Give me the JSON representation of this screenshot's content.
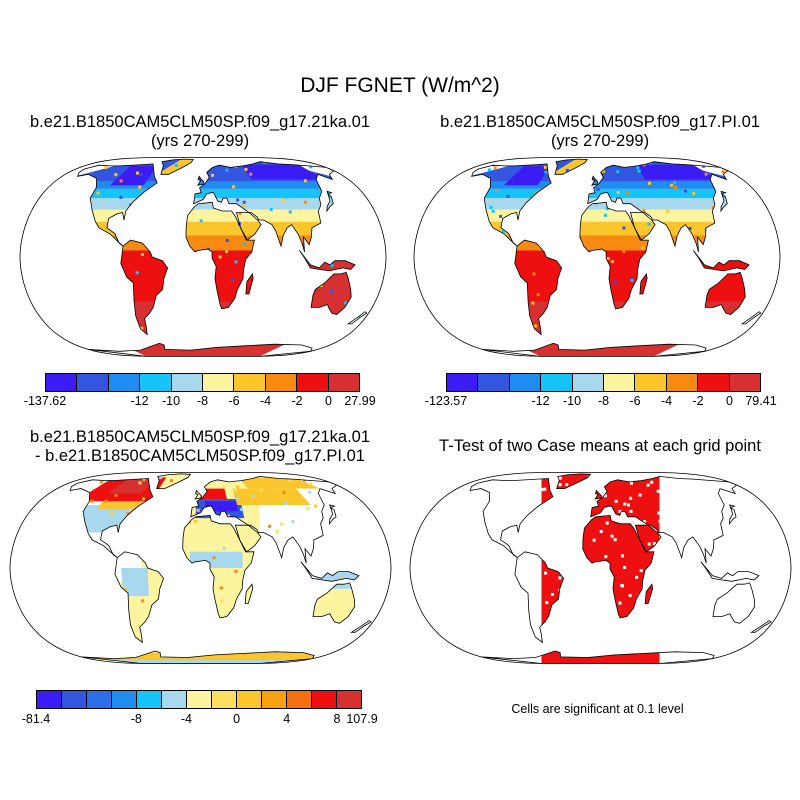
{
  "title": "DJF FGNET (W/m^2)",
  "panels": [
    {
      "id": "p1",
      "title_line1": "b.e21.B1850CAM5CLM50SP.f09_g17.21ka.01",
      "title_line2": "(yrs 270-299)"
    },
    {
      "id": "p2",
      "title_line1": "b.e21.B1850CAM5CLM50SP.f09_g17.PI.01",
      "title_line2": "(yrs 270-299)"
    },
    {
      "id": "p3",
      "title_line1": "b.e21.B1850CAM5CLM50SP.f09_g17.21ka.01",
      "title_line2": "- b.e21.B1850CAM5CLM50SP.f09_g17.PI.01"
    },
    {
      "id": "p4",
      "title_line1": "T-Test of two Case means at each grid point",
      "title_line2": ""
    }
  ],
  "colorbars": [
    {
      "id": "cb1",
      "colors": [
        "#3b1cf5",
        "#3355e0",
        "#1f8cf0",
        "#15c4f8",
        "#a7d8ee",
        "#fdf4a0",
        "#fbc52c",
        "#f78a10",
        "#ee1010",
        "#d63030"
      ],
      "labels": [
        "-137.62",
        "-12",
        "-10",
        "-8",
        "-6",
        "-4",
        "-2",
        "0",
        "27.99"
      ]
    },
    {
      "id": "cb2",
      "colors": [
        "#3b1cf5",
        "#3355e0",
        "#1f8cf0",
        "#15c4f8",
        "#a7d8ee",
        "#fdf4a0",
        "#fbc52c",
        "#f78a10",
        "#ee1010",
        "#d63030"
      ],
      "labels": [
        "-123.57",
        "-12",
        "-10",
        "-8",
        "-6",
        "-4",
        "-2",
        "0",
        "79.41"
      ]
    },
    {
      "id": "cb3",
      "colors": [
        "#3b1cf5",
        "#3355e0",
        "#2b6fe8",
        "#1f8cf0",
        "#15c4f8",
        "#a7d8ee",
        "#fdf4a0",
        "#fde060",
        "#fbc52c",
        "#f7a010",
        "#f77010",
        "#ee1010",
        "#d63030"
      ],
      "labels": [
        "-81.4",
        "-8",
        "-4",
        "0",
        "4",
        "8",
        "107.9"
      ]
    }
  ],
  "significance_note": "Cells are significant at 0.1 level",
  "map_colors": {
    "ocean": "#ffffff",
    "sig": "#ee1010",
    "coast": "#000000"
  }
}
